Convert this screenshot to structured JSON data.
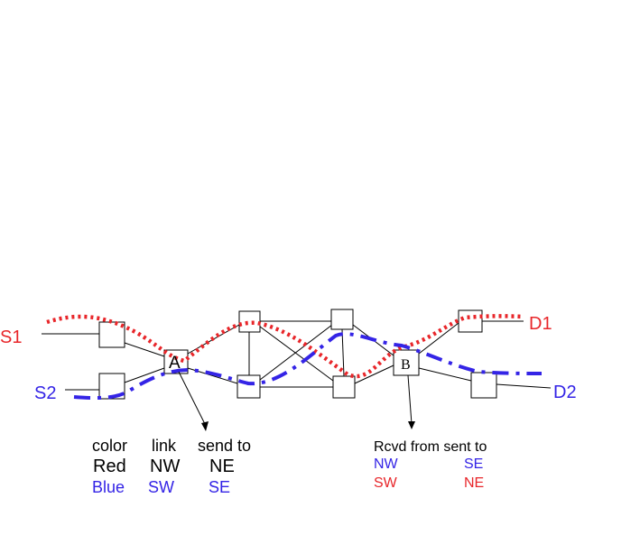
{
  "colors": {
    "red": "#e8262a",
    "blue": "#3424e6",
    "black": "#000000"
  },
  "labels": {
    "s1": "S1",
    "s2": "S2",
    "d1": "D1",
    "d2": "D2",
    "node_a": "A",
    "node_b": "B"
  },
  "table_a": {
    "headers": [
      "color",
      "link",
      "send to"
    ],
    "rows": [
      [
        "Red",
        "NW",
        "NE"
      ],
      [
        "Blue",
        "SW",
        "SE"
      ]
    ]
  },
  "table_b": {
    "header": "Rcvd from sent to",
    "rows": [
      [
        "NW",
        "SE"
      ],
      [
        "SW",
        "NE"
      ]
    ]
  }
}
